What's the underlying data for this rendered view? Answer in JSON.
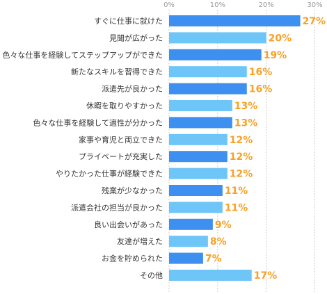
{
  "chart_data": {
    "type": "bar",
    "orientation": "horizontal",
    "categories": [
      "すぐに仕事に就けた",
      "見聞が広がった",
      "色々な仕事を経験してステップアップができた",
      "新たなスキルを習得できた",
      "派遣先が良かった",
      "休暇を取りやすかった",
      "色々な仕事を経験して適性が分かった",
      "家事や育児と両立できた",
      "プライベートが充実した",
      "やりたかった仕事が経験できた",
      "残業が少なかった",
      "派遣会社の担当が良かった",
      "良い出会いがあった",
      "友達が増えた",
      "お金を貯められた",
      "その他"
    ],
    "values": [
      27,
      20,
      19,
      16,
      16,
      13,
      13,
      12,
      12,
      12,
      11,
      11,
      9,
      8,
      7,
      17
    ],
    "value_labels": [
      "27%",
      "20%",
      "19%",
      "16%",
      "16%",
      "13%",
      "13%",
      "12%",
      "12%",
      "12%",
      "11%",
      "11%",
      "9%",
      "8%",
      "7%",
      "17%"
    ],
    "xlim": [
      0,
      31.5
    ],
    "xticks": [
      0,
      10,
      20,
      30
    ],
    "xtick_labels": [
      "0%",
      "10%",
      "20%",
      "30%"
    ],
    "grid": true,
    "colors": {
      "bar_odd": "#3d8ff0",
      "bar_even": "#6ec5f7",
      "value_text": "#f7a126",
      "grid": "#cccccc"
    }
  }
}
